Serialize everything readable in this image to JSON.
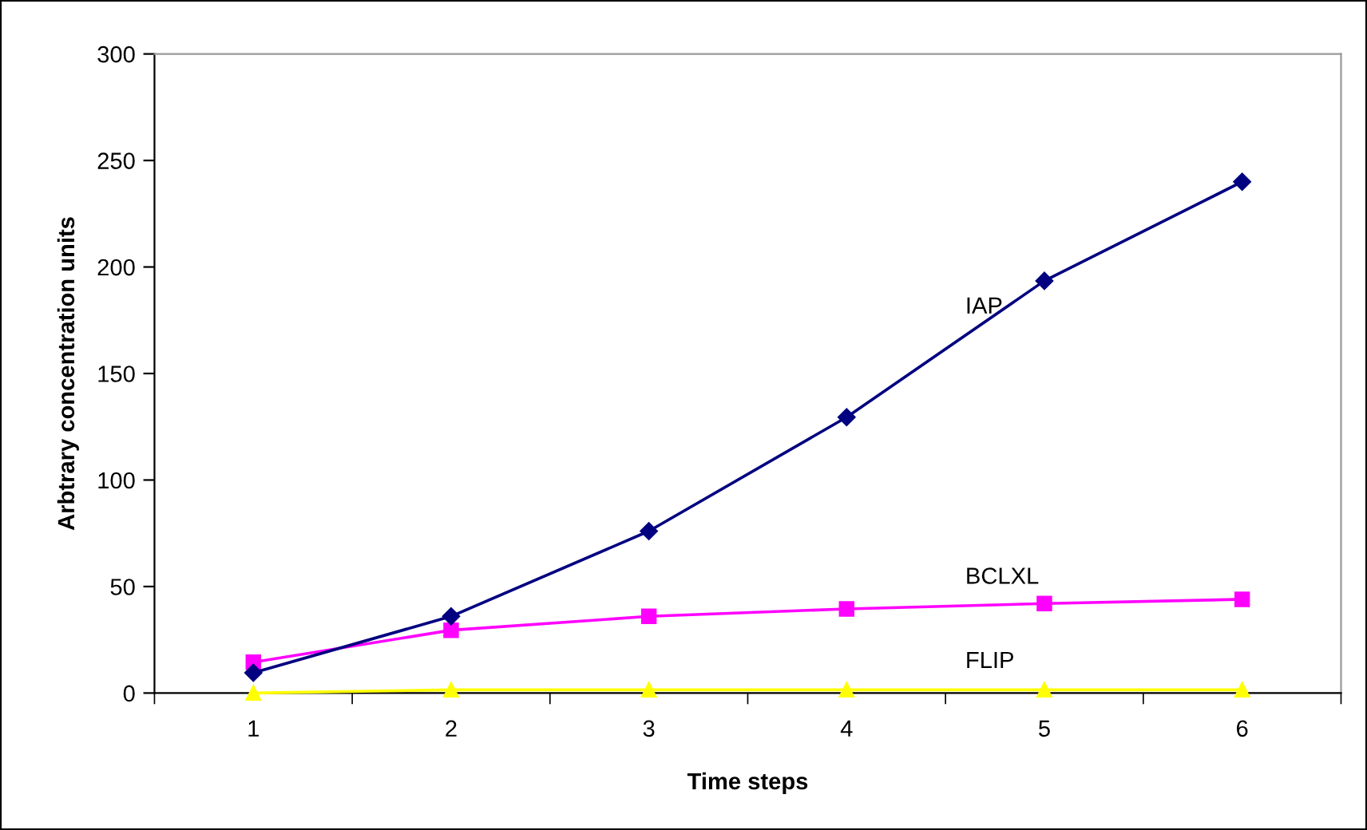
{
  "chart_data": {
    "type": "line",
    "xlabel": "Time steps",
    "ylabel": "Arbtrary concentration units",
    "categories": [
      "1",
      "2",
      "3",
      "4",
      "5",
      "6"
    ],
    "ylim": [
      0,
      300
    ],
    "yticks": [
      0,
      50,
      100,
      150,
      200,
      250,
      300
    ],
    "grid": false,
    "legend": false,
    "line_style": "solid",
    "series": [
      {
        "name": "IAP",
        "color": "#000080",
        "marker": "diamond",
        "values": [
          9.5,
          36,
          76,
          129.5,
          193.5,
          240
        ]
      },
      {
        "name": "BCLXL",
        "color": "#ff00ff",
        "marker": "square",
        "values": [
          14.5,
          29.5,
          36,
          39.5,
          42,
          44
        ]
      },
      {
        "name": "FLIP",
        "color": "#ffff00",
        "marker": "triangle",
        "values": [
          0,
          1.5,
          1.5,
          1.5,
          1.5,
          1.5
        ]
      }
    ]
  }
}
